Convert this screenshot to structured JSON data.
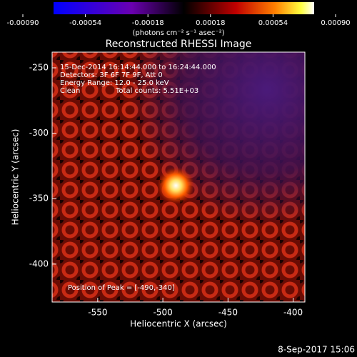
{
  "chart_data": {
    "type": "image",
    "title": "Reconstructed RHESSI Image",
    "colorbar": {
      "lim": [
        -0.0009,
        0.0009
      ],
      "ticks": [
        {
          "value": -0.0009,
          "label": "-0.00090"
        },
        -0.00054,
        -0.00018,
        0.00018,
        0.00054,
        {
          "value": 0.0009,
          "label": "0.00090"
        }
      ],
      "label": "(photons cm⁻² s⁻¹ asec⁻²)"
    },
    "xlabel": "Heliocentric X (arcsec)",
    "ylabel": "Heliocentric Y (arcsec)",
    "xlim": [
      -585,
      -391
    ],
    "xticks": [
      -550,
      -500,
      -450,
      -400
    ],
    "ylim": [
      -429,
      -238
    ],
    "yticks": [
      -250,
      -300,
      -350,
      -400
    ],
    "annotations": [
      "15-Dec-2014 16:14:44.000 to 16:24:44.000",
      "Detectors: 3F 6F 7F 9F, Att 0",
      "Energy Range: 12.0 - 25.0 keV",
      "Clean",
      "Total counts: 5.51E+03"
    ],
    "peak": {
      "label": "Position of Peak = [-490,-340]",
      "x": -490,
      "y": -340
    },
    "footer": "8-Sep-2017 15:06"
  }
}
